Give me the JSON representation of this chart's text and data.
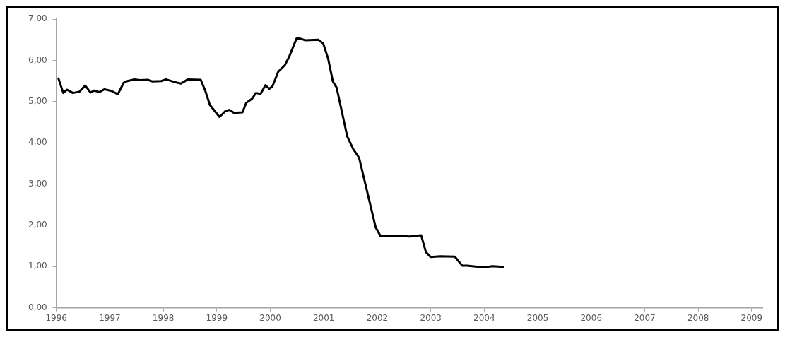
{
  "chart_data": {
    "type": "line",
    "x": [
      1996.04,
      1996.13,
      1996.2,
      1996.31,
      1996.43,
      1996.54,
      1996.64,
      1996.71,
      1996.8,
      1996.9,
      1997.03,
      1997.15,
      1997.26,
      1997.33,
      1997.46,
      1997.57,
      1997.71,
      1997.8,
      1997.96,
      1998.05,
      1998.2,
      1998.33,
      1998.46,
      1998.7,
      1998.78,
      1998.87,
      1999.05,
      1999.16,
      1999.23,
      1999.32,
      1999.48,
      1999.55,
      1999.66,
      1999.73,
      1999.82,
      1999.91,
      1999.98,
      2000.04,
      2000.15,
      2000.27,
      2000.35,
      2000.49,
      2000.56,
      2000.65,
      2000.9,
      2000.99,
      2001.08,
      2001.17,
      2001.24,
      2001.44,
      2001.55,
      2001.66,
      2001.84,
      2001.97,
      2002.06,
      2002.33,
      2002.6,
      2002.82,
      2002.91,
      2003.0,
      2003.18,
      2003.45,
      2003.59,
      2003.68,
      2003.99,
      2004.15,
      2004.36
    ],
    "series": [
      {
        "color": "#000000",
        "values": [
          5.56,
          5.21,
          5.29,
          5.21,
          5.24,
          5.39,
          5.22,
          5.27,
          5.23,
          5.3,
          5.26,
          5.18,
          5.46,
          5.5,
          5.54,
          5.52,
          5.53,
          5.49,
          5.5,
          5.54,
          5.48,
          5.44,
          5.54,
          5.53,
          5.28,
          4.92,
          4.63,
          4.77,
          4.8,
          4.73,
          4.74,
          4.97,
          5.07,
          5.21,
          5.19,
          5.4,
          5.31,
          5.37,
          5.73,
          5.88,
          6.08,
          6.53,
          6.53,
          6.49,
          6.5,
          6.41,
          6.05,
          5.49,
          5.34,
          4.15,
          3.85,
          3.64,
          2.66,
          1.95,
          1.74,
          1.75,
          1.73,
          1.76,
          1.35,
          1.23,
          1.25,
          1.24,
          1.02,
          1.02,
          0.98,
          1.01,
          0.99
        ]
      }
    ],
    "xlim": [
      1996,
      2009.2
    ],
    "xticks": [
      1996,
      1997,
      1998,
      1999,
      2000,
      2001,
      2002,
      2003,
      2004,
      2005,
      2006,
      2007,
      2008,
      2009
    ],
    "ylim": [
      0,
      7
    ],
    "yticks": [
      {
        "value": 0,
        "label": "0,00"
      },
      {
        "value": 1,
        "label": "1,00"
      },
      {
        "value": 2,
        "label": "2,00"
      },
      {
        "value": 3,
        "label": "3,00"
      },
      {
        "value": 4,
        "label": "4,00"
      },
      {
        "value": 5,
        "label": "5,00"
      },
      {
        "value": 6,
        "label": "6,00"
      },
      {
        "value": 7,
        "label": "7,00"
      }
    ],
    "grid": false,
    "legend": false,
    "marker": "none",
    "line_style": "solid"
  }
}
